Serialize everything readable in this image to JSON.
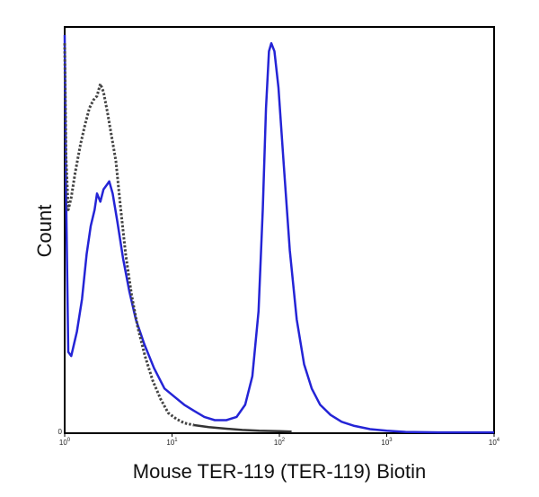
{
  "chart_data": {
    "type": "line",
    "title": "",
    "xlabel": "Mouse TER-119 (TER-119) Biotin",
    "ylabel": "Count",
    "x_scale": "log",
    "xlim": [
      1,
      10000
    ],
    "ylim": [
      0,
      100
    ],
    "grid": false,
    "x_ticks": [
      {
        "value": 1,
        "base": "10",
        "exp": "0"
      },
      {
        "value": 10,
        "base": "10",
        "exp": "1"
      },
      {
        "value": 100,
        "base": "10",
        "exp": "2"
      },
      {
        "value": 1000,
        "base": "10",
        "exp": "3"
      },
      {
        "value": 10000,
        "base": "10",
        "exp": "4"
      }
    ],
    "y_ticks": [
      {
        "value": 0,
        "label": "0"
      }
    ],
    "series": [
      {
        "color": "#2424d6",
        "line_style": "solid",
        "points": [
          [
            1.0,
            98
          ],
          [
            1.03,
            60
          ],
          [
            1.08,
            20
          ],
          [
            1.15,
            19
          ],
          [
            1.3,
            25
          ],
          [
            1.45,
            33
          ],
          [
            1.6,
            44
          ],
          [
            1.75,
            51
          ],
          [
            1.9,
            55
          ],
          [
            2.0,
            59
          ],
          [
            2.15,
            57
          ],
          [
            2.3,
            60
          ],
          [
            2.45,
            61
          ],
          [
            2.6,
            62
          ],
          [
            2.8,
            59
          ],
          [
            3.1,
            52
          ],
          [
            3.5,
            43
          ],
          [
            4.0,
            35
          ],
          [
            4.6,
            28
          ],
          [
            5.5,
            22
          ],
          [
            6.8,
            16
          ],
          [
            8.5,
            11
          ],
          [
            10.5,
            9
          ],
          [
            13,
            7
          ],
          [
            16,
            5.5
          ],
          [
            20,
            4
          ],
          [
            25,
            3.2
          ],
          [
            32,
            3.2
          ],
          [
            40,
            4
          ],
          [
            48,
            7
          ],
          [
            56,
            14
          ],
          [
            64,
            30
          ],
          [
            70,
            55
          ],
          [
            75,
            80
          ],
          [
            80,
            94
          ],
          [
            84,
            96
          ],
          [
            90,
            94
          ],
          [
            98,
            85
          ],
          [
            110,
            66
          ],
          [
            125,
            45
          ],
          [
            145,
            28
          ],
          [
            170,
            17
          ],
          [
            200,
            11
          ],
          [
            240,
            7
          ],
          [
            300,
            4.5
          ],
          [
            380,
            2.8
          ],
          [
            500,
            1.8
          ],
          [
            700,
            1.0
          ],
          [
            1000,
            0.6
          ],
          [
            1500,
            0.3
          ],
          [
            3000,
            0.2
          ],
          [
            10000,
            0.2
          ]
        ]
      },
      {
        "color": "#444444",
        "line_style": "dotted",
        "points": [
          [
            1.0,
            96
          ],
          [
            1.03,
            68
          ],
          [
            1.08,
            55
          ],
          [
            1.15,
            58
          ],
          [
            1.25,
            64
          ],
          [
            1.4,
            71
          ],
          [
            1.55,
            76
          ],
          [
            1.7,
            80
          ],
          [
            1.85,
            82
          ],
          [
            2.0,
            83
          ],
          [
            2.15,
            86
          ],
          [
            2.3,
            84
          ],
          [
            2.5,
            79
          ],
          [
            2.7,
            74
          ],
          [
            3.0,
            67
          ],
          [
            3.3,
            56
          ],
          [
            3.7,
            44
          ],
          [
            4.2,
            34
          ],
          [
            4.8,
            26
          ],
          [
            5.6,
            19
          ],
          [
            6.6,
            13
          ],
          [
            7.8,
            8.5
          ],
          [
            9.2,
            5
          ],
          [
            11,
            3.5
          ],
          [
            13,
            2.5
          ],
          [
            16,
            2
          ]
        ]
      },
      {
        "color": "#333333",
        "line_style": "solid",
        "points": [
          [
            16,
            2
          ],
          [
            22,
            1.5
          ],
          [
            32,
            1.1
          ],
          [
            45,
            0.8
          ],
          [
            65,
            0.6
          ],
          [
            100,
            0.5
          ],
          [
            130,
            0.4
          ]
        ]
      }
    ]
  }
}
